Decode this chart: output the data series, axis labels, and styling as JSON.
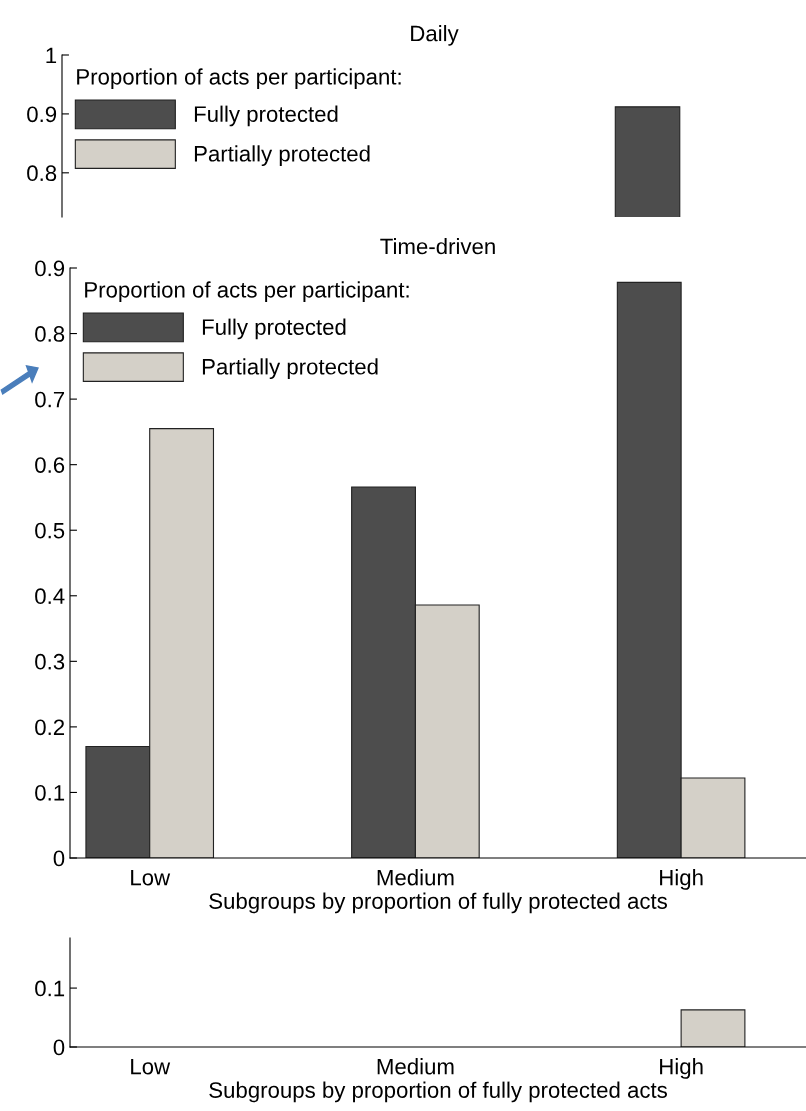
{
  "chart_data": [
    {
      "type": "bar",
      "title": "Daily",
      "legend_title": "Proportion of acts per participant:",
      "categories": [
        null,
        null,
        null
      ],
      "tick_labels": "y",
      "ylim": [
        0.725,
        1
      ],
      "yticks": [
        0.8,
        0.9,
        1
      ],
      "legend": "top left",
      "series": [
        {
          "name": "Fully protected",
          "color": "#4d4d4d",
          "values": [
            null,
            null,
            0.912
          ]
        },
        {
          "name": "Partially protected",
          "color": "#d4d0c8",
          "values": [
            null,
            null,
            null
          ]
        }
      ]
    },
    {
      "type": "bar",
      "title": "Time-driven",
      "legend_title": "Proportion of acts per participant:",
      "xlabel": "Subgroups by proportion of fully protected acts",
      "categories": [
        "Low",
        "Medium",
        "High"
      ],
      "ylim": [
        0,
        0.9
      ],
      "yticks": [
        0,
        0.1,
        0.2,
        0.3,
        0.4,
        0.5,
        0.6,
        0.7,
        0.8,
        0.9
      ],
      "legend": "top left",
      "series": [
        {
          "name": "Fully protected",
          "color": "#4d4d4d",
          "values": [
            0.17,
            0.566,
            0.878
          ]
        },
        {
          "name": "Partially protected",
          "color": "#d4d0c8",
          "values": [
            0.655,
            0.386,
            0.122
          ]
        }
      ]
    },
    {
      "type": "bar",
      "xlabel": "Subgroups by proportion of fully protected acts",
      "categories": [
        "Low",
        "Medium",
        "High"
      ],
      "ylim": [
        0,
        0.185
      ],
      "yticks": [
        0,
        0.1
      ],
      "series": [
        {
          "color": "#4d4d4d",
          "values": [
            null,
            null,
            null
          ]
        },
        {
          "color": "#d4d0c8",
          "values": [
            null,
            null,
            0.063
          ]
        }
      ]
    }
  ]
}
